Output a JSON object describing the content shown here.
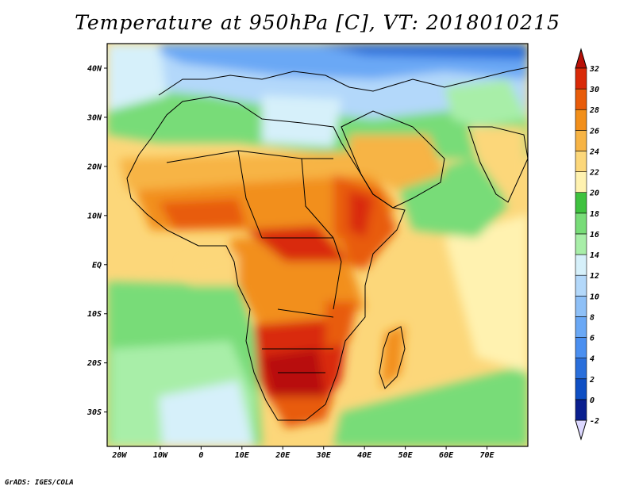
{
  "title": "Temperature at 950hPa [C], VT: 2018010215",
  "credit": "GrADS: IGES/COLA",
  "map": {
    "lon_range": [
      -23,
      80
    ],
    "lat_range": [
      -37,
      45
    ],
    "lat_ticks": [
      {
        "value": 40,
        "label": "40N"
      },
      {
        "value": 30,
        "label": "30N"
      },
      {
        "value": 20,
        "label": "20N"
      },
      {
        "value": 10,
        "label": "10N"
      },
      {
        "value": 0,
        "label": "EQ"
      },
      {
        "value": -10,
        "label": "10S"
      },
      {
        "value": -20,
        "label": "20S"
      },
      {
        "value": -30,
        "label": "30S"
      }
    ],
    "lon_ticks": [
      {
        "value": -20,
        "label": "20W"
      },
      {
        "value": -10,
        "label": "10W"
      },
      {
        "value": 0,
        "label": "0"
      },
      {
        "value": 10,
        "label": "10E"
      },
      {
        "value": 20,
        "label": "20E"
      },
      {
        "value": 30,
        "label": "30E"
      },
      {
        "value": 40,
        "label": "40E"
      },
      {
        "value": 50,
        "label": "50E"
      },
      {
        "value": 60,
        "label": "60E"
      },
      {
        "value": 70,
        "label": "70E"
      }
    ]
  },
  "colorbar": {
    "levels": [
      {
        "label": "-2",
        "color": "#0a1f8f"
      },
      {
        "label": "0",
        "color": "#0f4fc4"
      },
      {
        "label": "2",
        "color": "#2a6fdb"
      },
      {
        "label": "4",
        "color": "#4a8ff0"
      },
      {
        "label": "6",
        "color": "#6aa8f5"
      },
      {
        "label": "8",
        "color": "#8ec0f7"
      },
      {
        "label": "10",
        "color": "#b3d8fa"
      },
      {
        "label": "12",
        "color": "#d6f0fa"
      },
      {
        "label": "14",
        "color": "#a8eea8"
      },
      {
        "label": "16",
        "color": "#78dc78"
      },
      {
        "label": "18",
        "color": "#3fc23f"
      },
      {
        "label": "20",
        "color": "#fff2b0"
      },
      {
        "label": "22",
        "color": "#fcd77a"
      },
      {
        "label": "24",
        "color": "#f7b445"
      },
      {
        "label": "26",
        "color": "#f28f1a"
      },
      {
        "label": "28",
        "color": "#e85c0a"
      },
      {
        "label": "30",
        "color": "#d92a08"
      },
      {
        "label": "32",
        "color": "#b81008"
      }
    ],
    "low_extension_color": "#dcd8ff",
    "high_extension_color": "#b81008"
  }
}
